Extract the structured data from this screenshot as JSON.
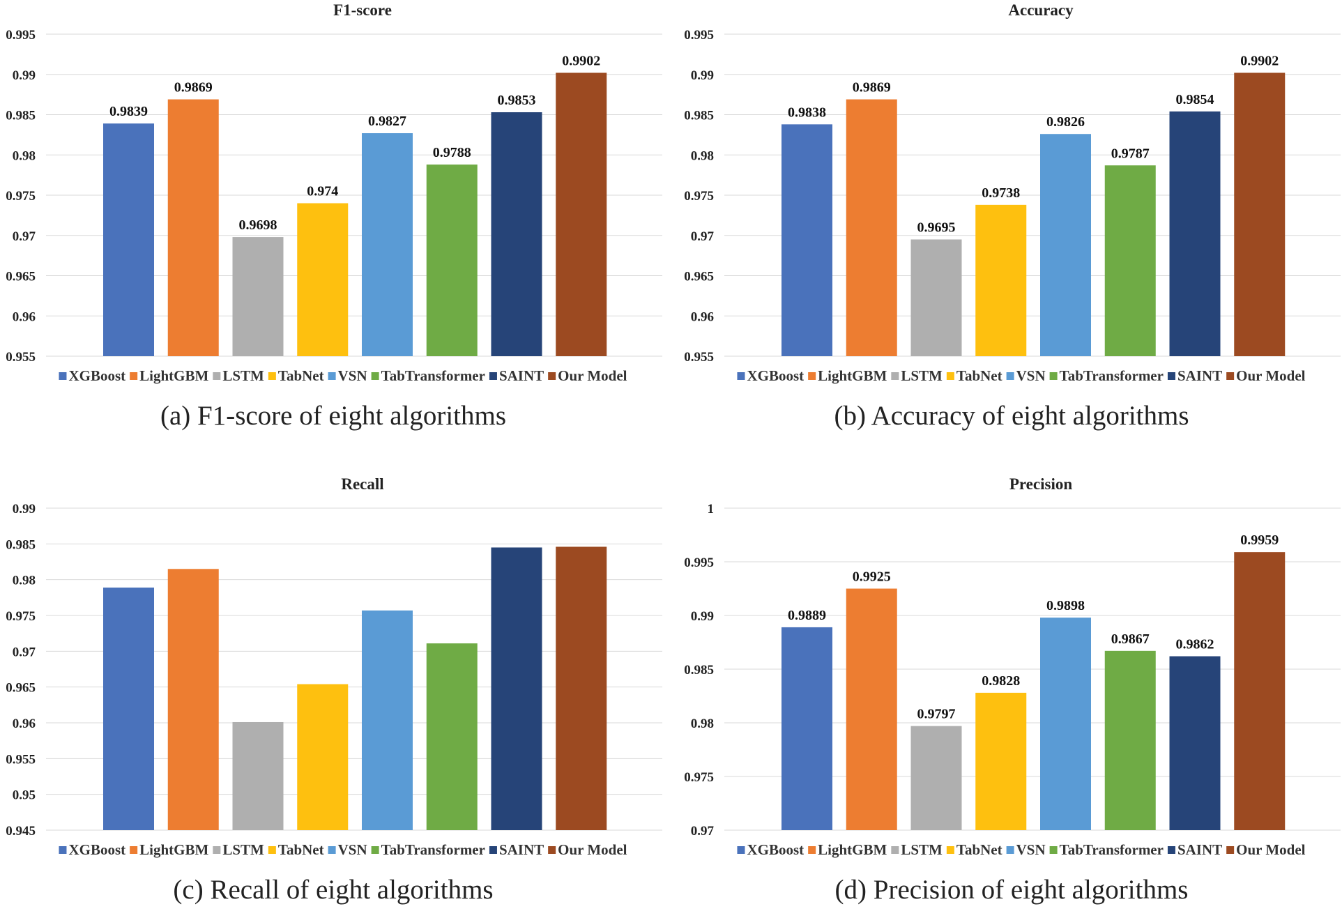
{
  "chart_data": [
    {
      "type": "bar",
      "title": "F1-score",
      "caption": "(a) F1-score of eight algorithms",
      "categories": [
        "XGBoost",
        "LightGBM",
        "LSTM",
        "TabNet",
        "VSN",
        "TabTransformer",
        "SAINT",
        "Our Model"
      ],
      "values": [
        0.9839,
        0.9869,
        0.9698,
        0.974,
        0.9827,
        0.9788,
        0.9853,
        0.9902
      ],
      "data_labels": [
        "0.9839",
        "0.9869",
        "0.9698",
        "0.974",
        "0.9827",
        "0.9788",
        "0.9853",
        "0.9902"
      ],
      "ylim": [
        0.955,
        0.995
      ],
      "yticks": [
        "0.955",
        "0.96",
        "0.965",
        "0.97",
        "0.975",
        "0.98",
        "0.985",
        "0.99",
        "0.995"
      ],
      "xlabel": "",
      "ylabel": "",
      "grid": true,
      "legend": "bottom"
    },
    {
      "type": "bar",
      "title": "Accuracy",
      "caption": "(b) Accuracy of eight algorithms",
      "categories": [
        "XGBoost",
        "LightGBM",
        "LSTM",
        "TabNet",
        "VSN",
        "TabTransformer",
        "SAINT",
        "Our Model"
      ],
      "values": [
        0.9838,
        0.9869,
        0.9695,
        0.9738,
        0.9826,
        0.9787,
        0.9854,
        0.9902
      ],
      "data_labels": [
        "0.9838",
        "0.9869",
        "0.9695",
        "0.9738",
        "0.9826",
        "0.9787",
        "0.9854",
        "0.9902"
      ],
      "ylim": [
        0.955,
        0.995
      ],
      "yticks": [
        "0.955",
        "0.96",
        "0.965",
        "0.97",
        "0.975",
        "0.98",
        "0.985",
        "0.99",
        "0.995"
      ],
      "xlabel": "",
      "ylabel": "",
      "grid": true,
      "legend": "bottom"
    },
    {
      "type": "bar",
      "title": "Recall",
      "caption": "(c) Recall of eight algorithms",
      "categories": [
        "XGBoost",
        "LightGBM",
        "LSTM",
        "TabNet",
        "VSN",
        "TabTransformer",
        "SAINT",
        "Our Model"
      ],
      "values": [
        0.9789,
        0.9815,
        0.9601,
        0.9654,
        0.9757,
        0.9711,
        0.9845,
        0.9846
      ],
      "data_labels": [],
      "ylim": [
        0.945,
        0.99
      ],
      "yticks": [
        "0.945",
        "0.95",
        "0.955",
        "0.96",
        "0.965",
        "0.97",
        "0.975",
        "0.98",
        "0.985",
        "0.99"
      ],
      "xlabel": "",
      "ylabel": "",
      "grid": true,
      "legend": "bottom"
    },
    {
      "type": "bar",
      "title": "Precision",
      "caption": "(d) Precision of eight algorithms",
      "categories": [
        "XGBoost",
        "LightGBM",
        "LSTM",
        "TabNet",
        "VSN",
        "TabTransformer",
        "SAINT",
        "Our Model"
      ],
      "values": [
        0.9889,
        0.9925,
        0.9797,
        0.9828,
        0.9898,
        0.9867,
        0.9862,
        0.9959
      ],
      "data_labels": [
        "0.9889",
        "0.9925",
        "0.9797",
        "0.9828",
        "0.9898",
        "0.9867",
        "0.9862",
        "0.9959"
      ],
      "ylim": [
        0.97,
        1.0
      ],
      "yticks": [
        "0.97",
        "0.975",
        "0.98",
        "0.985",
        "0.99",
        "0.995",
        "1"
      ],
      "xlabel": "",
      "ylabel": "",
      "grid": true,
      "legend": "bottom"
    }
  ],
  "colors": {
    "XGBoost": "#4a72bb",
    "LightGBM": "#ed7d31",
    "LSTM": "#afafaf",
    "TabNet": "#fec00f",
    "VSN": "#5a9bd5",
    "TabTransformer": "#6fab45",
    "SAINT": "#264478",
    "Our Model": "#9c4a21"
  }
}
